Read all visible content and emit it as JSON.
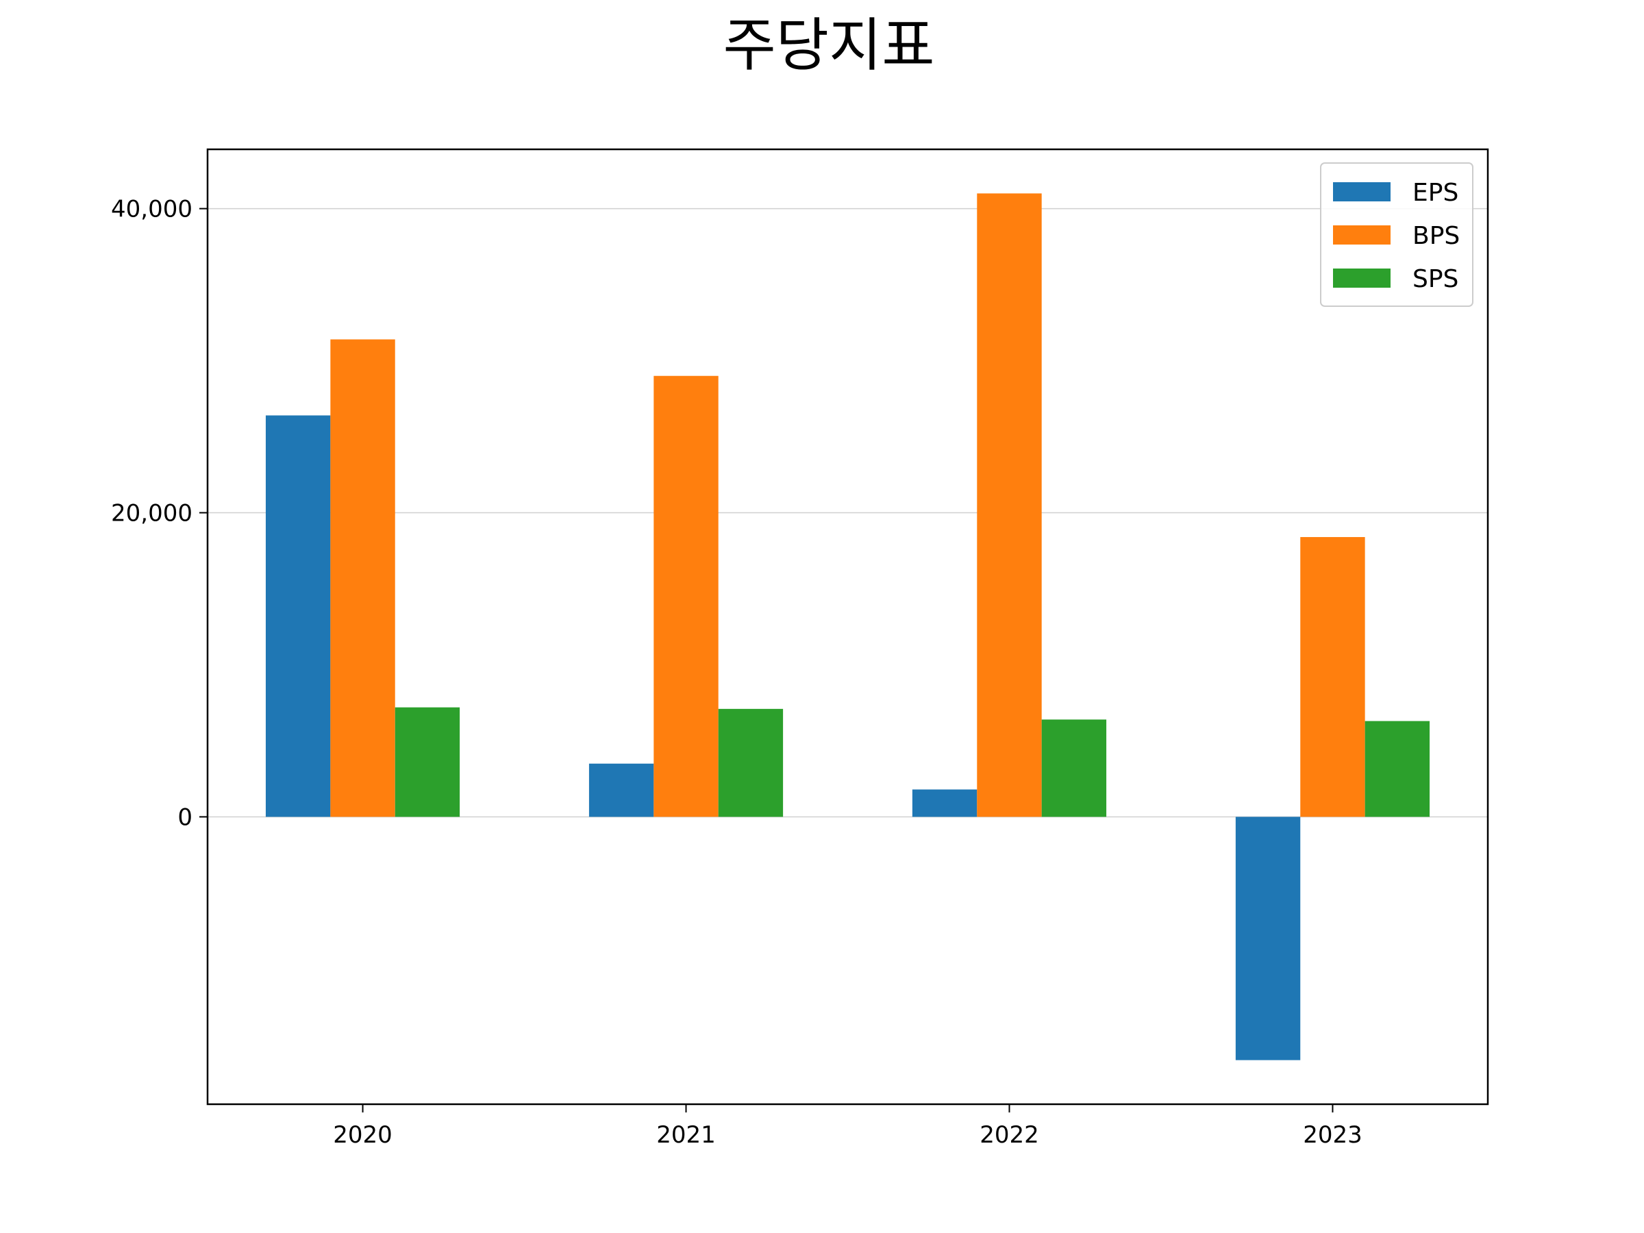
{
  "chart_data": {
    "type": "bar",
    "title": "주당지표",
    "xlabel": "",
    "ylabel": "",
    "categories": [
      "2020",
      "2021",
      "2022",
      "2023"
    ],
    "series": [
      {
        "name": "EPS",
        "color": "#1f77b4",
        "values": [
          26400,
          3500,
          1800,
          -16000
        ]
      },
      {
        "name": "BPS",
        "color": "#ff7f0e",
        "values": [
          31400,
          29000,
          41000,
          18400
        ]
      },
      {
        "name": "SPS",
        "color": "#2ca02c",
        "values": [
          7200,
          7100,
          6400,
          6300
        ]
      }
    ],
    "ylim": [
      -18900,
      43900
    ],
    "yticks": [
      0,
      20000,
      40000
    ],
    "ytick_labels": [
      "0",
      "20,000",
      "40,000"
    ],
    "grid": "y",
    "legend_position": "top-right"
  }
}
